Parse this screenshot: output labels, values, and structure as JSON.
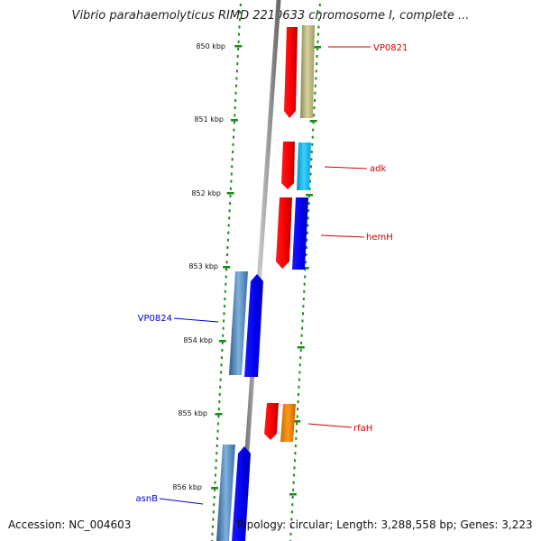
{
  "title": "Vibrio parahaemolyticus RIMD 2210633 chromosome I, complete ...",
  "footer": {
    "accession": "Accession: NC_004603",
    "summary": "Topology: circular; Length: 3,288,558 bp; Genes: 3,223"
  },
  "ticks": [
    "850 kbp",
    "851 kbp",
    "852 kbp",
    "853 kbp",
    "854 kbp",
    "855 kbp",
    "856 kbp"
  ],
  "genes": [
    {
      "name": "VP0821",
      "color": "#cc0000"
    },
    {
      "name": "adk",
      "color": "#cc0000"
    },
    {
      "name": "hemH",
      "color": "#cc0000"
    },
    {
      "name": "VP0824",
      "color": "#0000cc"
    },
    {
      "name": "rfaH",
      "color": "#cc0000"
    },
    {
      "name": "asnB",
      "color": "#0000cc"
    }
  ],
  "colors": {
    "tick": "#1a8a1a",
    "backbone": "#8a8a8a",
    "red_feature": "#ff0000",
    "blue_feature": "#0000ee",
    "steelblue_feature": "#4a86c0",
    "cyan_feature": "#19b7ee",
    "olive_feature": "#bdb982",
    "orange_feature": "#ff8c00"
  }
}
